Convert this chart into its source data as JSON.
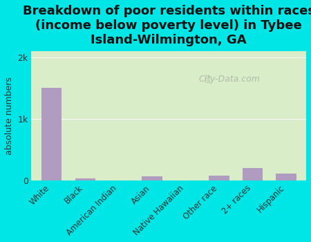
{
  "title": "Breakdown of poor residents within races\n(income below poverty level) in Tybee\nIsland-Wilmington, GA",
  "categories": [
    "White",
    "Black",
    "American Indian",
    "Asian",
    "Native Hawaiian",
    "Other race",
    "2+ races",
    "Hispanic"
  ],
  "values": [
    1500,
    30,
    0,
    60,
    0,
    80,
    200,
    110
  ],
  "bar_color": "#b09cc0",
  "ylabel": "absolute numbers",
  "yticks": [
    0,
    1000,
    2000
  ],
  "ytick_labels": [
    "0",
    "1k",
    "2k"
  ],
  "ylim": [
    0,
    2100
  ],
  "bg_color_top": "#d8edc8",
  "bg_color_bottom": "#e8f5d8",
  "outer_bg": "#00e5e5",
  "title_fontsize": 13,
  "watermark": "City-Data.com"
}
